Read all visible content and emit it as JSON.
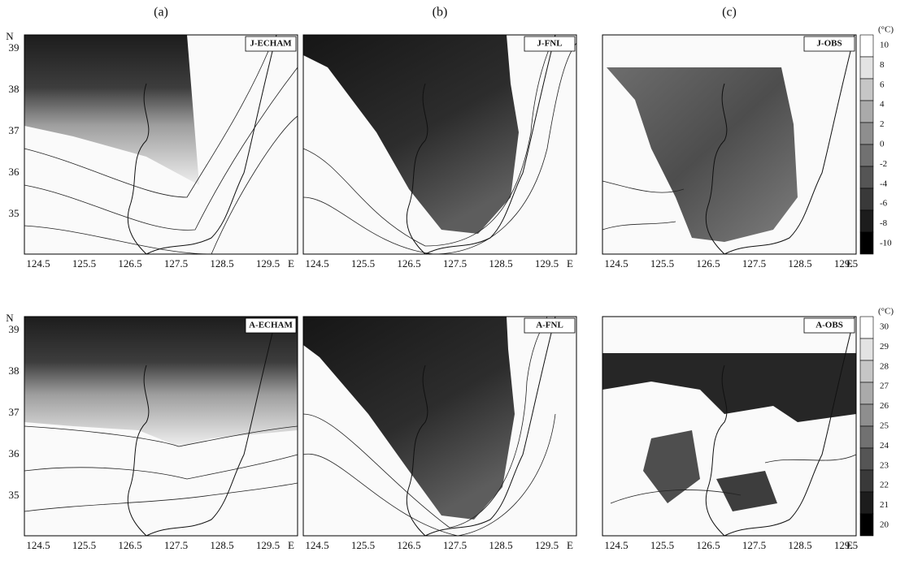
{
  "columns": [
    "(a)",
    "(b)",
    "(c)"
  ],
  "latitude": {
    "hemisphere": "N",
    "labels": [
      "39",
      "38",
      "37",
      "36",
      "35"
    ]
  },
  "longitude": {
    "labels": [
      "124.5",
      "125.5",
      "126.5",
      "127.5",
      "128.5",
      "129.5"
    ],
    "hemisphere": "E"
  },
  "panels": [
    {
      "label": "J-ECHAM"
    },
    {
      "label": "J-FNL"
    },
    {
      "label": "J-OBS"
    },
    {
      "label": "A-ECHAM"
    },
    {
      "label": "A-FNL"
    },
    {
      "label": "A-OBS"
    }
  ],
  "colorbars": [
    {
      "unit": "(°C)",
      "ticks": [
        "10",
        "8",
        "6",
        "4",
        "2",
        "0",
        "-2",
        "-4",
        "-6",
        "-8",
        "-10"
      ]
    },
    {
      "unit": "(°C)",
      "ticks": [
        "30",
        "29",
        "28",
        "27",
        "26",
        "25",
        "24",
        "23",
        "22",
        "21",
        "20"
      ]
    }
  ]
}
